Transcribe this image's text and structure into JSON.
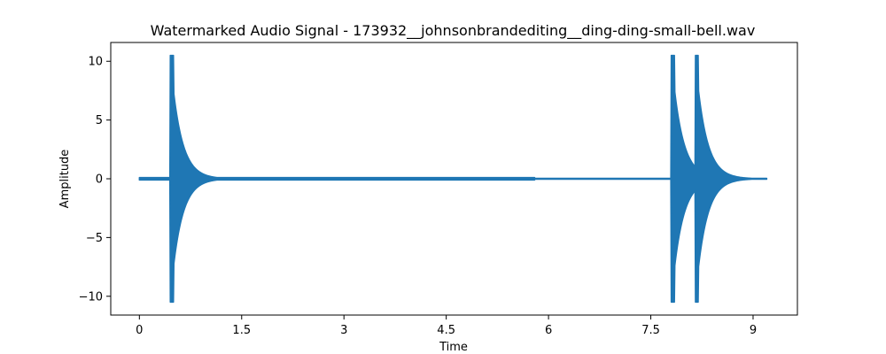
{
  "chart_data": {
    "type": "line",
    "title": "Watermarked Audio Signal - 173932__johnsonbrandediting__ding-ding-small-bell.wav",
    "xlabel": "Time",
    "ylabel": "Amplitude",
    "xlim": [
      -0.42,
      9.65
    ],
    "ylim": [
      -11.6,
      11.6
    ],
    "xticks": [
      0,
      1.5,
      3,
      4.5,
      6,
      7.5,
      9
    ],
    "xtick_labels": [
      "0",
      "1.5",
      "3",
      "4.5",
      "6",
      "7.5",
      "9"
    ],
    "yticks": [
      -10,
      -5,
      0,
      5,
      10
    ],
    "ytick_labels": [
      "−10",
      "−5",
      "0",
      "5",
      "10"
    ],
    "grid": false,
    "series": [
      {
        "color": "#1f77b4",
        "duration": 9.2,
        "peak_amplitude": 10.5,
        "onsets": [
          0.45,
          7.8,
          8.15
        ],
        "decay_constant": 0.15,
        "noise_floor": 0.1
      }
    ]
  }
}
